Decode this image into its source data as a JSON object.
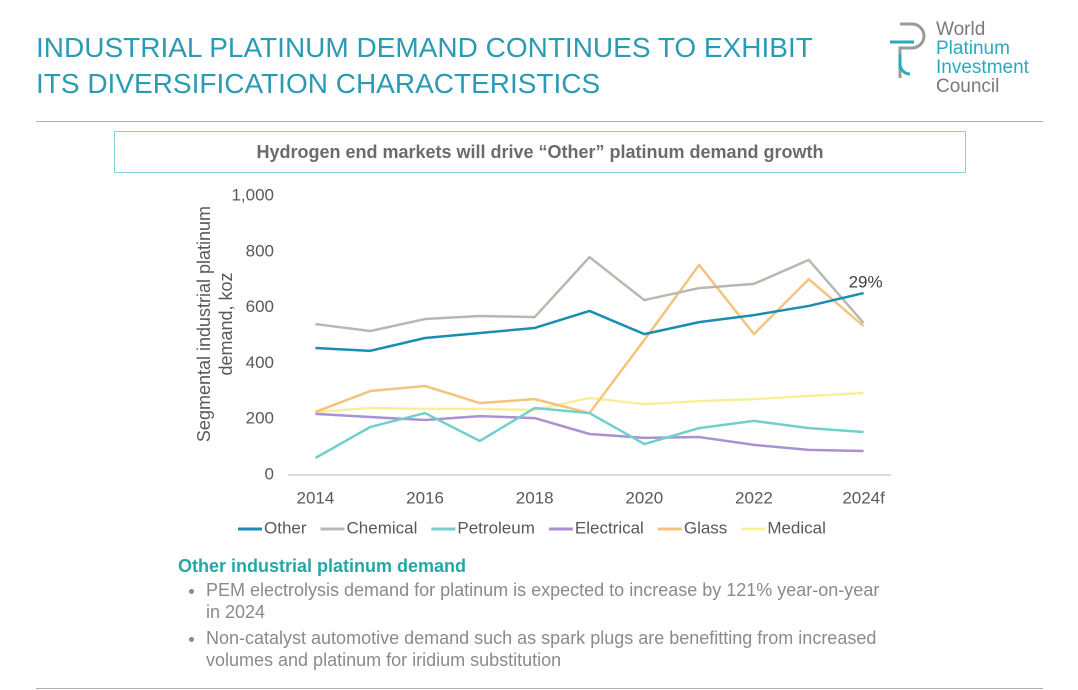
{
  "header": {
    "title": "INDUSTRIAL PLATINUM DEMAND CONTINUES TO EXHIBIT ITS DIVERSIFICATION CHARACTERISTICS"
  },
  "logo": {
    "lines": [
      "World",
      "Platinum",
      "Investment",
      "Council"
    ]
  },
  "chart_data": {
    "type": "line",
    "title": "Hydrogen end markets will drive “Other” platinum demand growth",
    "y_label": "Segmental industrial platinum demand, koz",
    "categories": [
      "2014",
      null,
      "2016",
      null,
      "2018",
      null,
      "2020",
      null,
      "2022",
      null,
      "2024f"
    ],
    "ylim": [
      0,
      1000
    ],
    "yticks": [
      0,
      200,
      400,
      600,
      800,
      {
        "value": 1000,
        "label": "1,000"
      }
    ],
    "grid": false,
    "legend": "bottom",
    "annotation": "29%",
    "series": [
      {
        "name": "Other",
        "color": "#1b8db0",
        "values": [
          455,
          445,
          491,
          509,
          527,
          588,
          505,
          548,
          573,
          606,
          652
        ]
      },
      {
        "name": "Chemical",
        "color": "#b8b8b0",
        "values": [
          541,
          516,
          559,
          570,
          566,
          781,
          627,
          670,
          685,
          771,
          545
        ]
      },
      {
        "name": "Petroleum",
        "color": "#72d0cb",
        "values": [
          61,
          172,
          222,
          122,
          240,
          222,
          111,
          168,
          194,
          168,
          154
        ]
      },
      {
        "name": "Electrical",
        "color": "#aa92d2",
        "values": [
          219,
          208,
          197,
          211,
          204,
          147,
          133,
          136,
          108,
          90,
          86
        ]
      },
      {
        "name": "Glass",
        "color": "#f4c47e",
        "values": [
          226,
          301,
          319,
          258,
          272,
          222,
          484,
          753,
          505,
          702,
          534
        ]
      },
      {
        "name": "Medical",
        "color": "#f8ef9c",
        "values": [
          226,
          240,
          237,
          237,
          233,
          276,
          254,
          265,
          272,
          283,
          294
        ]
      }
    ]
  },
  "notes": {
    "heading": "Other industrial platinum demand",
    "bullets": [
      "PEM electrolysis demand for platinum is expected to increase by 121% year-on-year in 2024",
      "Non-catalyst automotive demand such as spark plugs are benefitting from increased volumes and platinum for iridium substitution"
    ]
  }
}
